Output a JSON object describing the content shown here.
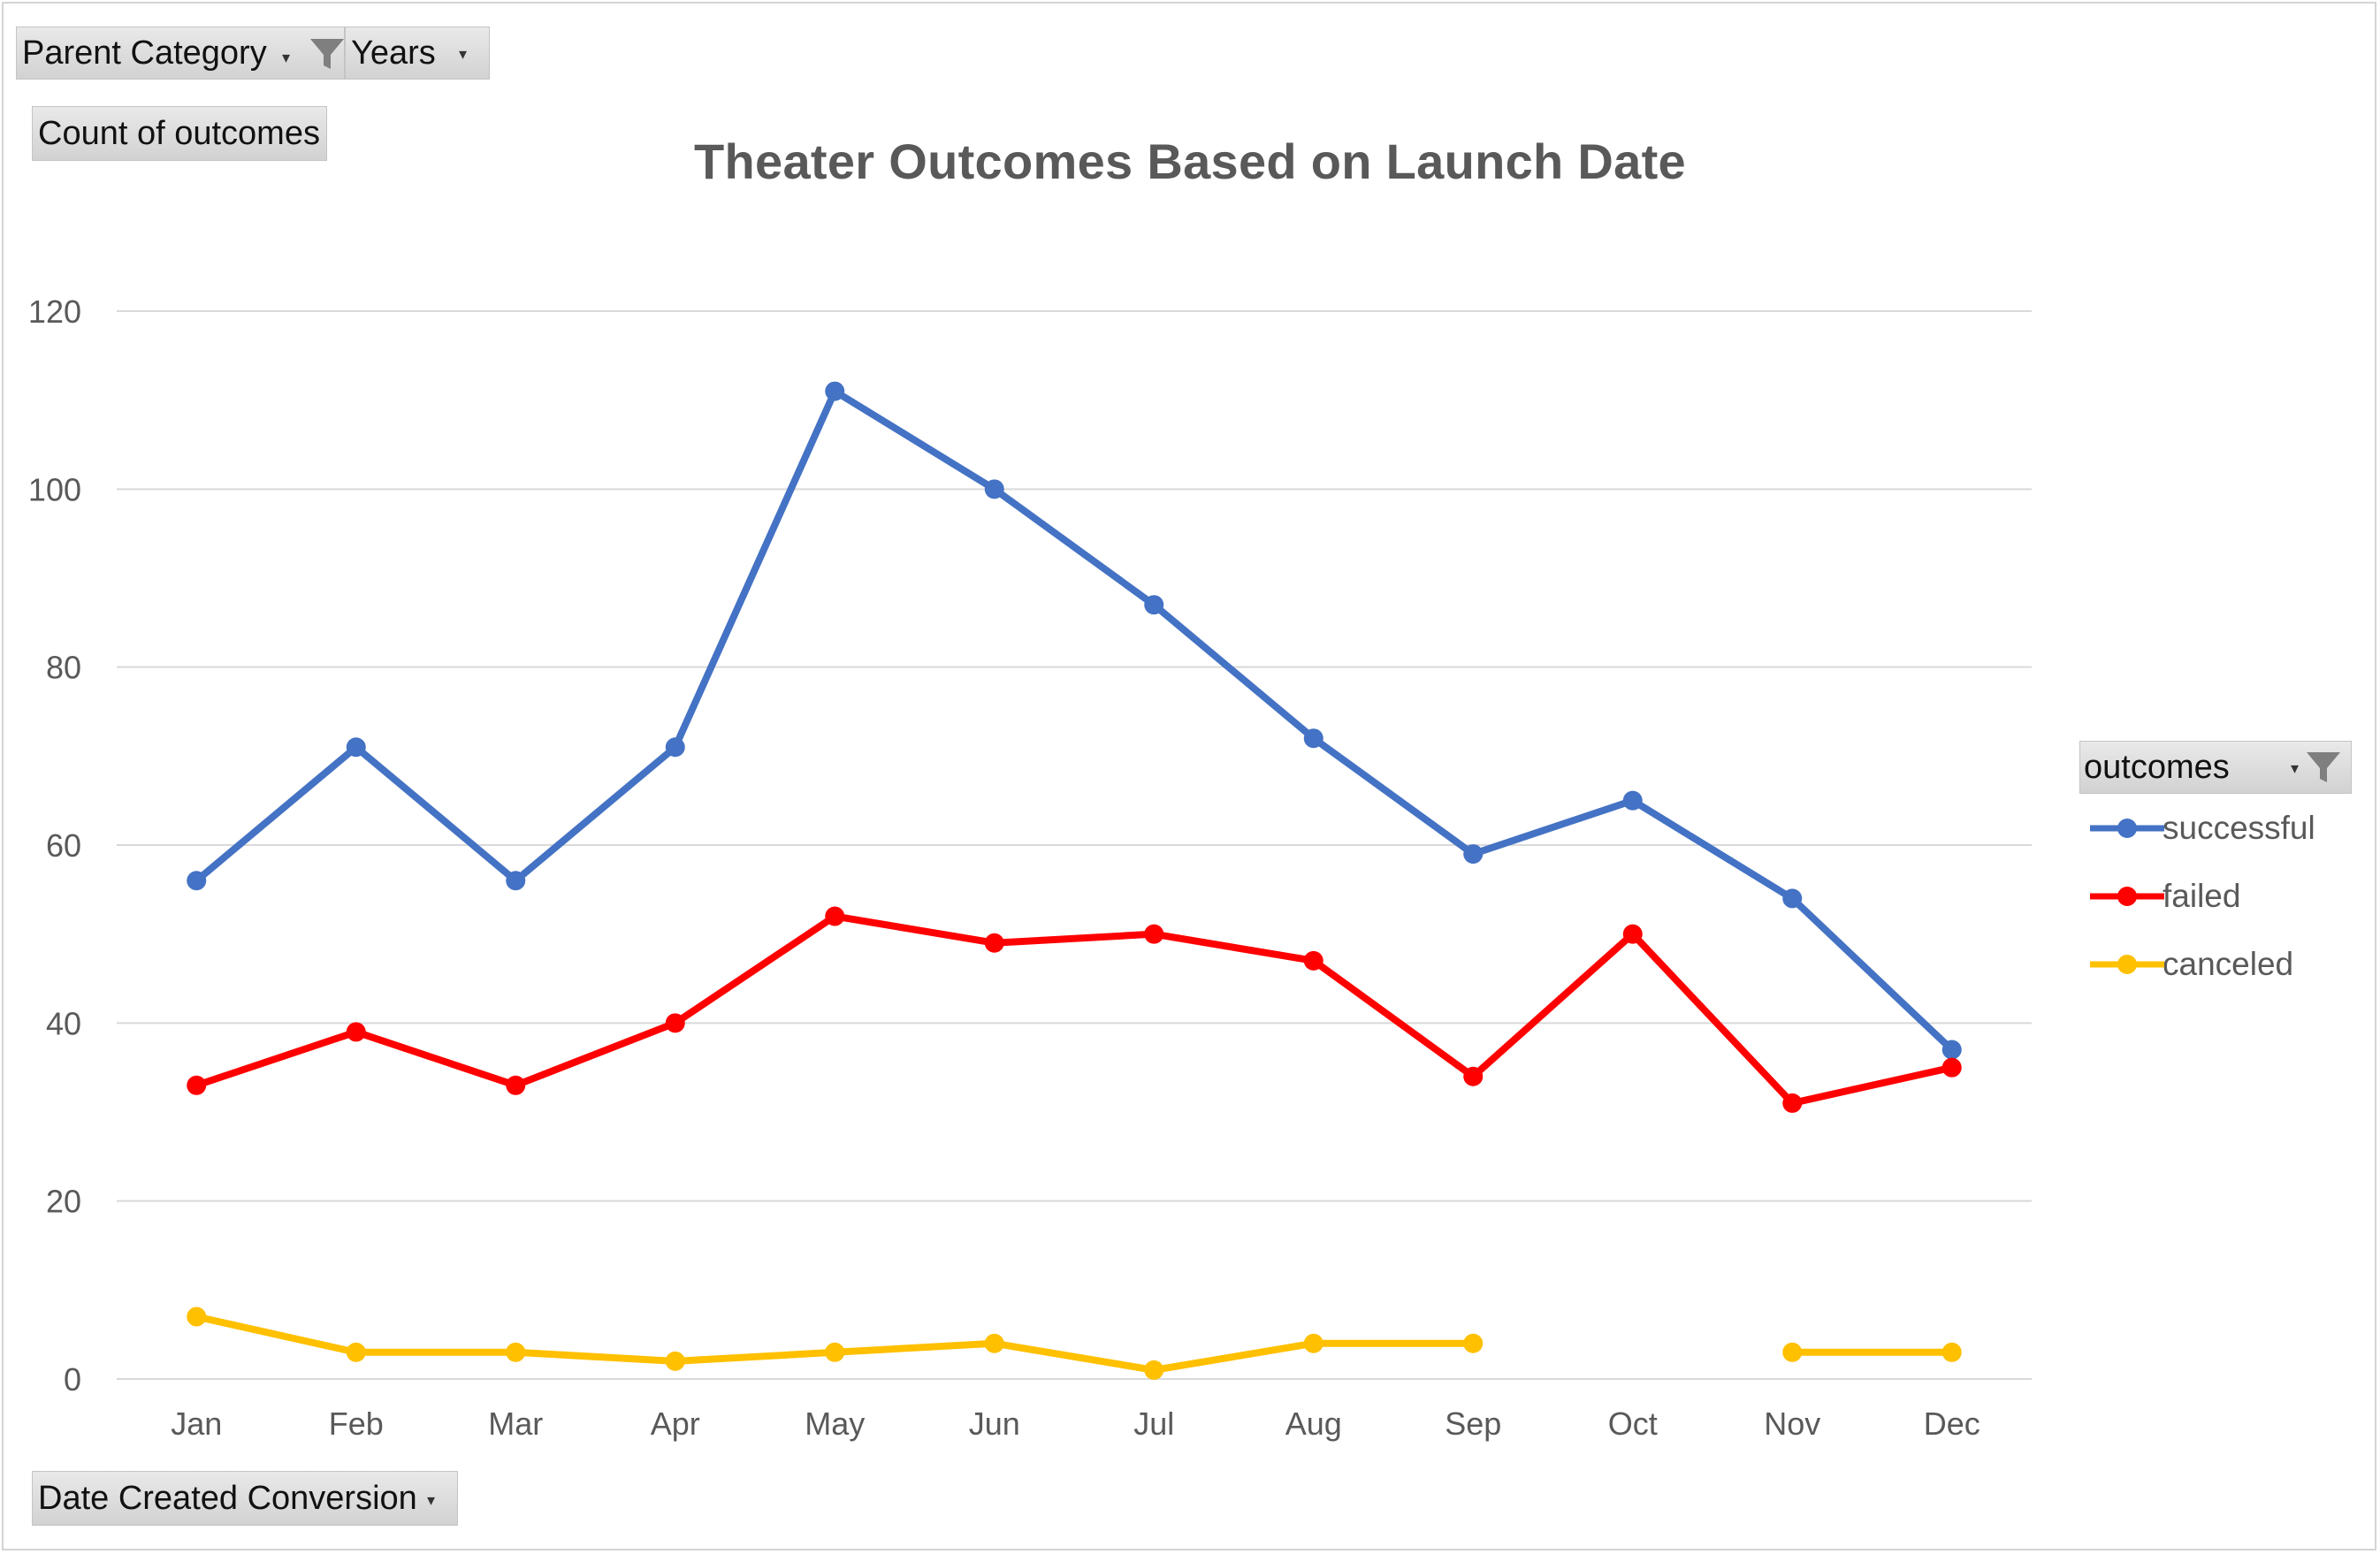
{
  "pivot_filters": {
    "parent_category": "Parent Category",
    "years": "Years",
    "count_of_outcomes": "Count of outcomes",
    "date_created_conversion": "Date Created Conversion"
  },
  "legend": {
    "title": "outcomes"
  },
  "colors": {
    "successful": "#4472C4",
    "failed": "#FF0000",
    "canceled": "#FFC000",
    "grid": "#d9d9d9",
    "axis_text": "#595959"
  },
  "icons": {
    "filter": "funnel-filter-icon",
    "dropdown": "dropdown-arrow-icon"
  },
  "chart_data": {
    "type": "line",
    "title": "Theater Outcomes Based on Launch Date",
    "xlabel": "",
    "ylabel": "",
    "categories": [
      "Jan",
      "Feb",
      "Mar",
      "Apr",
      "May",
      "Jun",
      "Jul",
      "Aug",
      "Sep",
      "Oct",
      "Nov",
      "Dec"
    ],
    "ylim": [
      0,
      120
    ],
    "yticks": [
      0,
      20,
      40,
      60,
      80,
      100,
      120
    ],
    "grid": true,
    "legend_position": "right",
    "series": [
      {
        "name": "successful",
        "values": [
          56,
          71,
          56,
          71,
          111,
          100,
          87,
          72,
          59,
          65,
          54,
          37
        ]
      },
      {
        "name": "failed",
        "values": [
          33,
          39,
          33,
          40,
          52,
          49,
          50,
          47,
          34,
          50,
          31,
          35
        ]
      },
      {
        "name": "canceled",
        "values": [
          7,
          3,
          3,
          2,
          3,
          4,
          1,
          4,
          4,
          null,
          3,
          3
        ]
      }
    ]
  }
}
